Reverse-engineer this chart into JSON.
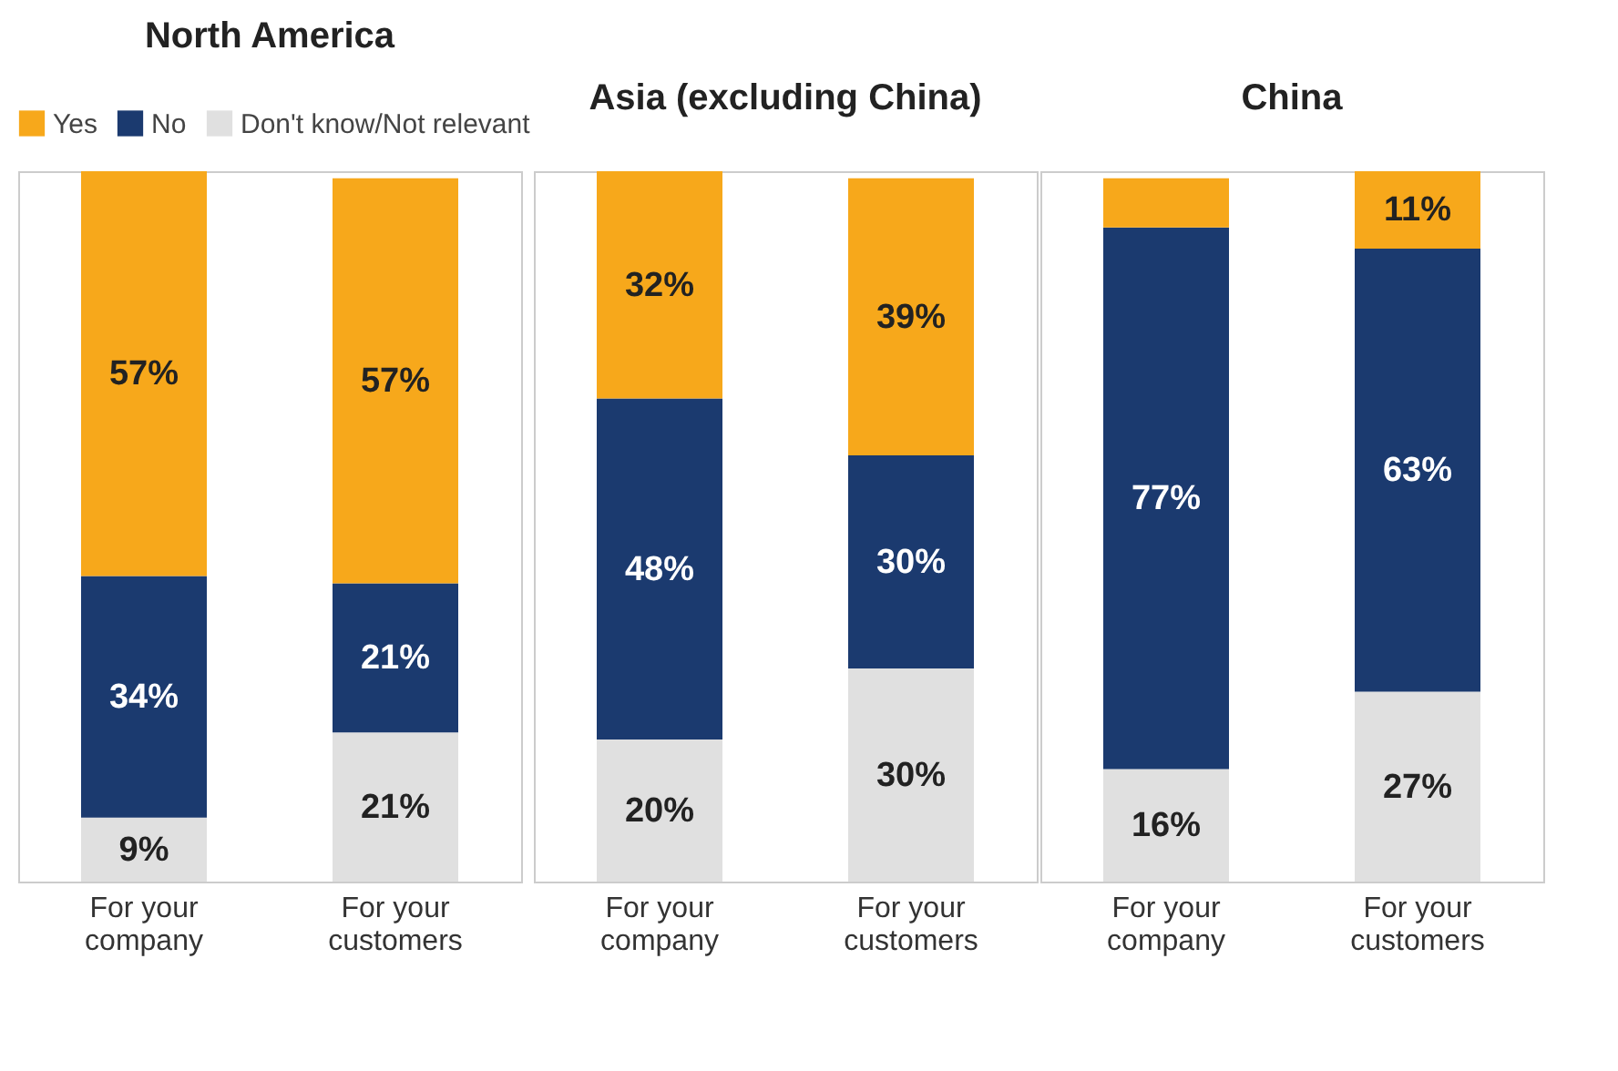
{
  "chart_data": [
    {
      "type": "bar",
      "stacked": true,
      "title": "North America",
      "categories": [
        "For your company",
        "For your customers"
      ],
      "legend": "top",
      "grid": false,
      "series": [
        {
          "name": "Don't know/Not relevant",
          "color": "#e0e0e0",
          "values": [
            9,
            21
          ],
          "value_labels": [
            "9%",
            "21%"
          ]
        },
        {
          "name": "No",
          "color": "#1b3a6f",
          "values": [
            34,
            21
          ],
          "value_labels": [
            "34%",
            "21%"
          ]
        },
        {
          "name": "Yes",
          "color": "#f7a81b",
          "values": [
            57,
            57
          ],
          "value_labels": [
            "57%",
            "57%"
          ]
        }
      ]
    },
    {
      "type": "bar",
      "stacked": true,
      "title": "Asia (excluding China)",
      "categories": [
        "For your company",
        "For your customers"
      ],
      "series": [
        {
          "color": "#e0e0e0",
          "values": [
            20,
            30
          ],
          "value_labels": [
            "20%",
            "30%"
          ]
        },
        {
          "color": "#1b3a6f",
          "values": [
            48,
            30
          ],
          "value_labels": [
            "48%",
            "30%"
          ]
        },
        {
          "color": "#f7a81b",
          "values": [
            32,
            39
          ],
          "value_labels": [
            "32%",
            "39%"
          ]
        }
      ]
    },
    {
      "type": "bar",
      "stacked": true,
      "title": "China",
      "categories": [
        "For your company",
        "For your customers"
      ],
      "series": [
        {
          "color": "#e0e0e0",
          "values": [
            16,
            27
          ],
          "value_labels": [
            "16%",
            "27%"
          ]
        },
        {
          "color": "#1b3a6f",
          "values": [
            77,
            63
          ],
          "value_labels": [
            "77%",
            "63%"
          ]
        },
        {
          "color": "#f7a81b",
          "values": [
            7,
            11
          ],
          "value_labels": [
            null,
            "11%"
          ]
        }
      ]
    }
  ]
}
